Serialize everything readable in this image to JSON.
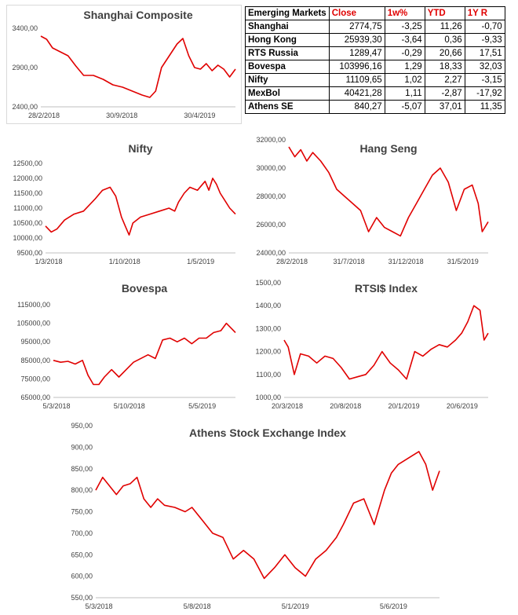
{
  "table": {
    "title": "Emerging Markets",
    "headers": [
      "Close",
      "1w%",
      "YTD",
      "1Y R"
    ],
    "rows": [
      {
        "name": "Shanghai",
        "values": [
          "2774,75",
          "-3,25",
          "11,26",
          "-0,70"
        ]
      },
      {
        "name": "Hong Kong",
        "values": [
          "25939,30",
          "-3,64",
          "0,36",
          "-9,33"
        ]
      },
      {
        "name": "RTS Russia",
        "values": [
          "1289,47",
          "-0,29",
          "20,66",
          "17,51"
        ]
      },
      {
        "name": "Bovespa",
        "values": [
          "103996,16",
          "1,29",
          "18,33",
          "32,03"
        ]
      },
      {
        "name": "Nifty",
        "values": [
          "11109,65",
          "1,02",
          "2,27",
          "-3,15"
        ]
      },
      {
        "name": "MexBol",
        "values": [
          "40421,28",
          "1,11",
          "-2,87",
          "-17,92"
        ]
      },
      {
        "name": "Athens SE",
        "values": [
          "840,27",
          "-5,07",
          "37,01",
          "11,35"
        ]
      }
    ]
  },
  "colors": {
    "line": "#e00000",
    "text": "#404040"
  },
  "chart_data": [
    {
      "id": "shanghai",
      "type": "line",
      "title": "Shanghai Composite",
      "ylim": [
        2400,
        3400
      ],
      "yticks": [
        "3400,00",
        "2900,00",
        "2400,00"
      ],
      "xticks": [
        "28/2/2018",
        "30/9/2018",
        "30/4/2019"
      ],
      "x": [
        0,
        0.03,
        0.06,
        0.1,
        0.14,
        0.18,
        0.22,
        0.27,
        0.32,
        0.37,
        0.42,
        0.47,
        0.52,
        0.56,
        0.59,
        0.62,
        0.66,
        0.7,
        0.73,
        0.76,
        0.79,
        0.82,
        0.85,
        0.88,
        0.91,
        0.94,
        0.97,
        1
      ],
      "values": [
        3300,
        3260,
        3150,
        3100,
        3050,
        2920,
        2800,
        2800,
        2750,
        2680,
        2650,
        2600,
        2550,
        2520,
        2600,
        2900,
        3050,
        3200,
        3270,
        3050,
        2900,
        2880,
        2950,
        2860,
        2930,
        2880,
        2780,
        2880
      ]
    },
    {
      "id": "nifty",
      "type": "line",
      "title": "Nifty",
      "ylim": [
        9500,
        12500
      ],
      "yticks": [
        "12500,00",
        "12000,00",
        "11500,00",
        "11000,00",
        "10500,00",
        "10000,00",
        "9500,00"
      ],
      "xticks": [
        "1/3/2018",
        "1/10/2018",
        "1/5/2019"
      ],
      "x": [
        0,
        0.03,
        0.06,
        0.1,
        0.15,
        0.2,
        0.26,
        0.3,
        0.34,
        0.37,
        0.4,
        0.42,
        0.44,
        0.46,
        0.5,
        0.55,
        0.6,
        0.65,
        0.68,
        0.7,
        0.73,
        0.76,
        0.8,
        0.84,
        0.86,
        0.88,
        0.9,
        0.92,
        0.95,
        0.97,
        1
      ],
      "values": [
        10400,
        10200,
        10300,
        10600,
        10800,
        10900,
        11300,
        11600,
        11700,
        11400,
        10700,
        10400,
        10100,
        10500,
        10700,
        10800,
        10900,
        11000,
        10900,
        11200,
        11500,
        11700,
        11600,
        11900,
        11600,
        12000,
        11800,
        11500,
        11200,
        11000,
        10800
      ]
    },
    {
      "id": "hangseng",
      "type": "line",
      "title": "Hang Seng",
      "ylim": [
        24000,
        32000
      ],
      "yticks": [
        "32000,00",
        "30000,00",
        "28000,00",
        "26000,00",
        "24000,00"
      ],
      "xticks": [
        "28/2/2018",
        "31/7/2018",
        "31/12/2018",
        "31/5/2019"
      ],
      "x": [
        0,
        0.03,
        0.06,
        0.09,
        0.12,
        0.16,
        0.2,
        0.24,
        0.28,
        0.32,
        0.36,
        0.4,
        0.44,
        0.48,
        0.52,
        0.56,
        0.6,
        0.64,
        0.68,
        0.72,
        0.76,
        0.8,
        0.84,
        0.88,
        0.92,
        0.95,
        0.97,
        1
      ],
      "values": [
        31500,
        30800,
        31300,
        30500,
        31100,
        30500,
        29700,
        28500,
        28000,
        27500,
        27000,
        25500,
        26500,
        25800,
        25500,
        25200,
        26500,
        27500,
        28500,
        29500,
        30000,
        29000,
        27000,
        28500,
        28800,
        27500,
        25500,
        26200
      ]
    },
    {
      "id": "bovespa",
      "type": "line",
      "title": "Bovespa",
      "ylim": [
        65000,
        115000
      ],
      "yticks": [
        "115000,00",
        "105000,00",
        "95000,00",
        "85000,00",
        "75000,00",
        "65000,00"
      ],
      "xticks": [
        "5/3/2018",
        "5/10/2018",
        "5/5/2019"
      ],
      "x": [
        0,
        0.04,
        0.08,
        0.12,
        0.16,
        0.19,
        0.22,
        0.25,
        0.28,
        0.32,
        0.36,
        0.4,
        0.44,
        0.48,
        0.52,
        0.56,
        0.6,
        0.64,
        0.68,
        0.72,
        0.76,
        0.8,
        0.84,
        0.88,
        0.92,
        0.95,
        0.98,
        1
      ],
      "values": [
        85000,
        84000,
        84500,
        83000,
        85000,
        77000,
        72000,
        72000,
        76000,
        80000,
        76000,
        80000,
        84000,
        86000,
        88000,
        86000,
        96000,
        97000,
        95000,
        97000,
        94000,
        97000,
        97000,
        100000,
        101000,
        105000,
        102000,
        100000
      ]
    },
    {
      "id": "rtsi",
      "type": "line",
      "title": "RTSI$ Index",
      "ylim": [
        1000,
        1500
      ],
      "yticks": [
        "1500,00",
        "1400,00",
        "1300,00",
        "1200,00",
        "1100,00",
        "1000,00"
      ],
      "xticks": [
        "20/3/2018",
        "20/8/2018",
        "20/1/2019",
        "20/6/2019"
      ],
      "x": [
        0,
        0.02,
        0.05,
        0.08,
        0.12,
        0.16,
        0.2,
        0.24,
        0.28,
        0.32,
        0.36,
        0.4,
        0.44,
        0.48,
        0.52,
        0.56,
        0.6,
        0.64,
        0.68,
        0.72,
        0.76,
        0.8,
        0.84,
        0.87,
        0.9,
        0.93,
        0.96,
        0.98,
        1
      ],
      "values": [
        1250,
        1220,
        1100,
        1190,
        1180,
        1150,
        1180,
        1170,
        1130,
        1080,
        1090,
        1100,
        1140,
        1200,
        1150,
        1120,
        1080,
        1200,
        1180,
        1210,
        1230,
        1220,
        1250,
        1280,
        1330,
        1400,
        1380,
        1250,
        1280
      ]
    },
    {
      "id": "athens",
      "type": "line",
      "title": "Athens Stock Exchange Index",
      "ylim": [
        550,
        950
      ],
      "yticks": [
        "950,00",
        "900,00",
        "850,00",
        "800,00",
        "750,00",
        "700,00",
        "650,00",
        "600,00",
        "550,00"
      ],
      "xticks": [
        "5/3/2018",
        "5/8/2018",
        "5/1/2019",
        "5/6/2019"
      ],
      "x": [
        0,
        0.02,
        0.04,
        0.06,
        0.08,
        0.1,
        0.12,
        0.14,
        0.16,
        0.18,
        0.2,
        0.23,
        0.26,
        0.28,
        0.31,
        0.34,
        0.37,
        0.4,
        0.43,
        0.46,
        0.49,
        0.52,
        0.55,
        0.58,
        0.61,
        0.64,
        0.67,
        0.7,
        0.72,
        0.75,
        0.78,
        0.81,
        0.84,
        0.86,
        0.88,
        0.9,
        0.92,
        0.94,
        0.96,
        0.98,
        1
      ],
      "values": [
        800,
        830,
        810,
        790,
        810,
        815,
        830,
        780,
        760,
        780,
        765,
        760,
        750,
        760,
        730,
        700,
        690,
        640,
        660,
        640,
        595,
        620,
        650,
        620,
        600,
        640,
        660,
        690,
        720,
        770,
        780,
        720,
        800,
        840,
        860,
        870,
        880,
        890,
        860,
        800,
        845
      ]
    }
  ]
}
